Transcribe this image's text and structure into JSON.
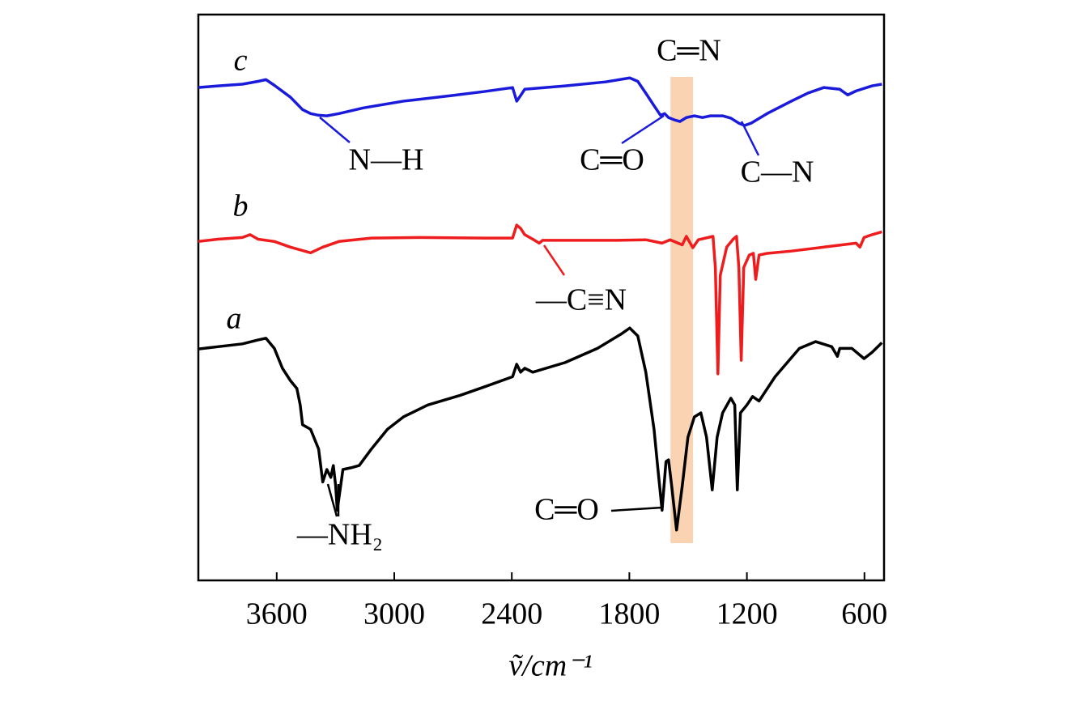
{
  "chart_data": {
    "type": "line",
    "x_label": "ṽ/cm⁻¹",
    "xlim": [
      4000,
      500
    ],
    "xticks": [
      3600,
      3000,
      2400,
      1800,
      1200,
      600
    ],
    "ylim": [
      0,
      100
    ],
    "grid": false,
    "highlight": [
      1590,
      1475
    ],
    "highlight_color": "#f9cba6",
    "series": [
      {
        "name": "a",
        "color": "#000000",
        "x": [
          4000,
          3900,
          3775,
          3695,
          3655,
          3612,
          3571,
          3530,
          3497,
          3480,
          3468,
          3427,
          3386,
          3365,
          3344,
          3324,
          3311,
          3299,
          3291,
          3262,
          3221,
          3179,
          3117,
          3035,
          2953,
          2829,
          2664,
          2540,
          2396,
          2375,
          2355,
          2334,
          2293,
          2128,
          1963,
          1839,
          1798,
          1757,
          1716,
          1674,
          1654,
          1633,
          1613,
          1600,
          1584,
          1559,
          1530,
          1501,
          1468,
          1435,
          1406,
          1377,
          1352,
          1324,
          1282,
          1262,
          1249,
          1233,
          1200,
          1171,
          1138,
          1056,
          932,
          849,
          767,
          738,
          726,
          664,
          602,
          561,
          511
        ],
        "values": [
          40.9,
          41.3,
          41.8,
          42.5,
          42.8,
          41.0,
          37.5,
          35.3,
          33.9,
          31.0,
          27.5,
          26.7,
          23.2,
          17.4,
          19.6,
          18.2,
          20.3,
          16.7,
          12.4,
          19.6,
          19.9,
          20.3,
          23.2,
          26.7,
          28.9,
          31.0,
          32.7,
          34.2,
          36.0,
          38.2,
          36.8,
          37.5,
          36.8,
          38.5,
          41.0,
          43.6,
          44.6,
          43.2,
          36.8,
          26.7,
          19.6,
          12.4,
          21.0,
          21.3,
          16.7,
          8.9,
          16.7,
          25.3,
          28.9,
          29.6,
          25.3,
          16.0,
          25.3,
          29.6,
          32.2,
          31.0,
          16.0,
          29.6,
          31.0,
          32.5,
          31.7,
          36.0,
          41.0,
          42.2,
          41.3,
          39.6,
          41.0,
          41.0,
          39.2,
          40.3,
          42.0
        ]
      },
      {
        "name": "b",
        "color": "#ee1c1c",
        "x": [
          4000,
          3900,
          3775,
          3736,
          3695,
          3612,
          3530,
          3427,
          3365,
          3282,
          3117,
          2870,
          2540,
          2396,
          2375,
          2355,
          2334,
          2293,
          2260,
          2243,
          2128,
          1880,
          1716,
          1633,
          1592,
          1530,
          1509,
          1476,
          1448,
          1373,
          1361,
          1348,
          1336,
          1303,
          1270,
          1253,
          1241,
          1229,
          1216,
          1188,
          1167,
          1155,
          1138,
          1097,
          973,
          808,
          643,
          623,
          602,
          561,
          511
        ],
        "values": [
          59.9,
          60.3,
          60.6,
          61.1,
          60.3,
          59.9,
          58.9,
          57.9,
          58.9,
          59.9,
          60.5,
          60.6,
          60.5,
          60.5,
          62.8,
          62.2,
          61.1,
          60.3,
          59.6,
          60.1,
          60.1,
          60.1,
          60.2,
          59.6,
          60.2,
          59.3,
          60.8,
          58.8,
          60.2,
          60.8,
          55.3,
          36.5,
          53.9,
          58.9,
          60.3,
          60.8,
          55.3,
          38.9,
          55.3,
          57.5,
          57.8,
          53.2,
          57.5,
          57.8,
          58.2,
          58.9,
          59.6,
          58.9,
          60.6,
          61.1,
          61.6
        ]
      },
      {
        "name": "c",
        "color": "#1a1adb",
        "x": [
          4000,
          3900,
          3775,
          3695,
          3655,
          3612,
          3530,
          3468,
          3427,
          3386,
          3344,
          3282,
          3158,
          2953,
          2705,
          2540,
          2396,
          2375,
          2355,
          2334,
          2128,
          1922,
          1798,
          1757,
          1716,
          1674,
          1641,
          1620,
          1600,
          1571,
          1542,
          1509,
          1468,
          1427,
          1386,
          1324,
          1282,
          1241,
          1212,
          1179,
          1097,
          973,
          890,
          808,
          726,
          685,
          643,
          561,
          511
        ],
        "values": [
          87.1,
          87.4,
          87.7,
          88.2,
          88.5,
          87.5,
          85.4,
          83.2,
          82.5,
          82.2,
          82.1,
          82.5,
          83.5,
          84.7,
          85.7,
          86.4,
          87.1,
          84.7,
          85.7,
          86.8,
          87.4,
          88.1,
          88.8,
          88.2,
          86.1,
          83.9,
          82.2,
          82.5,
          81.8,
          81.4,
          81.1,
          81.8,
          82.1,
          81.8,
          82.1,
          82.1,
          81.7,
          80.8,
          80.4,
          80.8,
          82.5,
          84.7,
          86.1,
          87.1,
          86.8,
          85.8,
          86.5,
          87.4,
          87.7
        ]
      }
    ],
    "annotations": [
      "C═N",
      "N—H",
      "C═O",
      "C—N",
      "—C≡N",
      "—NH₂",
      "C═O"
    ]
  }
}
